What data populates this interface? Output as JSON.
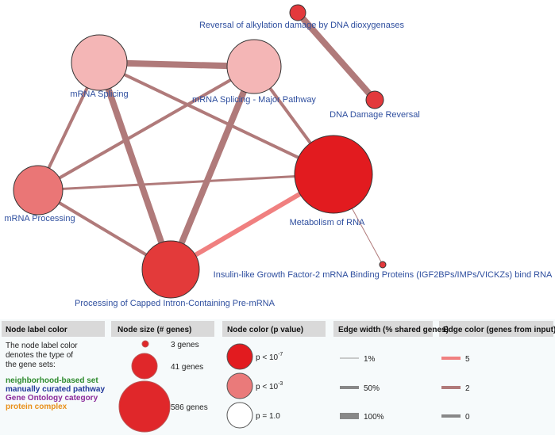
{
  "nodes": [
    {
      "label": "Reversal of alkylation damage by DNA dioxygenases"
    },
    {
      "label": "DNA Damage Reversal"
    },
    {
      "label": "mRNA Splicing"
    },
    {
      "label": "mRNA Splicing - Major Pathway"
    },
    {
      "label": "mRNA Processing"
    },
    {
      "label": "Metabolism of RNA"
    },
    {
      "label": "Processing of Capped Intron-Containing Pre-mRNA"
    },
    {
      "label": "Insulin-like Growth Factor-2 mRNA Binding Proteins (IGF2BPs/IMPs/VICKZs) bind RNA"
    }
  ],
  "legend": {
    "label_color": {
      "title": "Node label color",
      "description": [
        "The node label color",
        "denotes the type of",
        "the gene sets:"
      ],
      "items": [
        "neighborhood-based set",
        "manually curated pathway",
        "Gene Ontology category",
        "protein complex"
      ]
    },
    "node_size": {
      "title": "Node size (# genes)",
      "items": [
        "3 genes",
        "41 genes",
        "586 genes"
      ]
    },
    "node_color": {
      "title": "Node color (p value)",
      "items": [
        {
          "text": "p < 10",
          "exponent": "-7"
        },
        {
          "text": "p < 10",
          "exponent": "-3"
        },
        {
          "text": "p = 1.0"
        }
      ]
    },
    "edge_width": {
      "title": "Edge width (% shared genes)",
      "items": [
        "1%",
        "50%",
        "100%"
      ]
    },
    "edge_color": {
      "title": "Edge color (genes from input)",
      "items": [
        "5",
        "2",
        "0"
      ]
    }
  }
}
